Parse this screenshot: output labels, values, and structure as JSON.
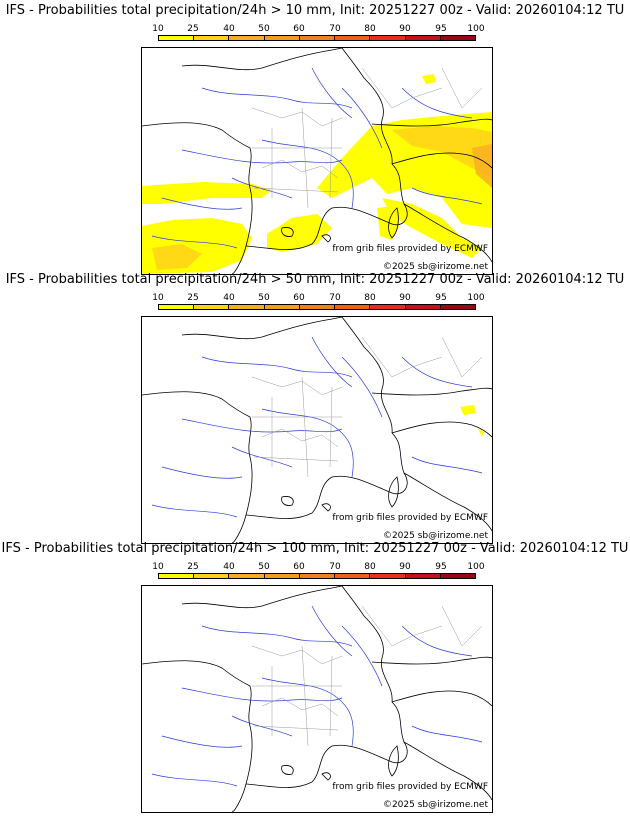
{
  "colorbar": {
    "ticks": [
      "10",
      "25",
      "40",
      "50",
      "60",
      "70",
      "80",
      "90",
      "95",
      "100"
    ],
    "colors": [
      "#ffff00",
      "#ffd21a",
      "#f7ad22",
      "#f39c1d",
      "#f08020",
      "#f06018",
      "#ea2c1c",
      "#c8101a",
      "#9a0612",
      "#640408"
    ]
  },
  "panels": [
    {
      "title": "IFS - Probabilities total precipitation/24h > 10 mm, Init: 20251227 00z - Valid: 20260104:12 TU",
      "credit_source": "from grib files provided by ECMWF",
      "credit_copyright": "©2025 sb@irizome.net"
    },
    {
      "title": "IFS - Probabilities total precipitation/24h > 50 mm, Init: 20251227 00z - Valid: 20260104:12 TU",
      "credit_source": "from grib files provided by ECMWF",
      "credit_copyright": "©2025 sb@irizome.net"
    },
    {
      "title": "IFS - Probabilities total precipitation/24h > 100 mm, Init: 20251227 00z - Valid: 20260104:12 TU",
      "credit_source": "from grib files provided by ECMWF",
      "credit_copyright": "©2025 sb@irizome.net"
    }
  ]
}
